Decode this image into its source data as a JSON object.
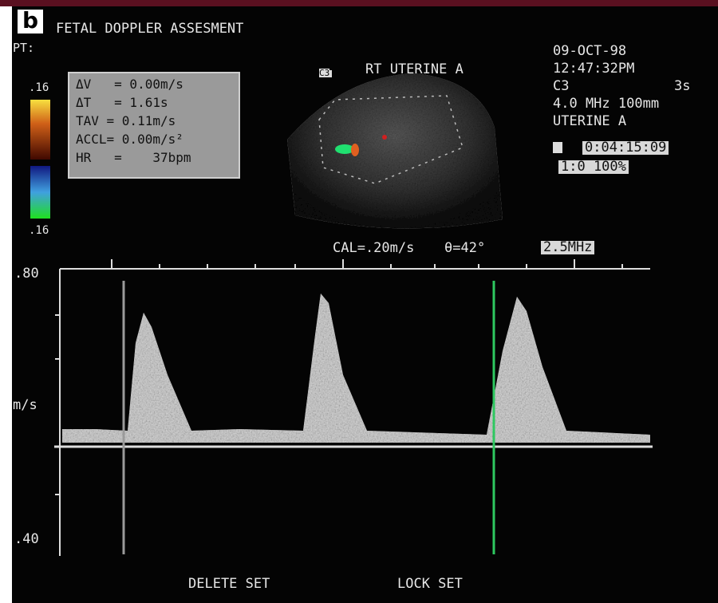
{
  "panel_label": "b",
  "title": "FETAL DOPPLER ASSESMENT",
  "patient_label": "PT:",
  "color_scale": {
    "top": ".16",
    "bottom": ".16"
  },
  "measurements": [
    "ΔV   = 0.00m/s",
    "ΔT   = 1.61s",
    "TAV = 0.11m/s",
    "ACCL= 0.00m/s²",
    "HR   =    37bpm"
  ],
  "image_label": "RT UTERINE A",
  "image_tag": "C3",
  "info": {
    "date": "09-OCT-98",
    "time": "12:47:32PM",
    "preset": "C3",
    "persist": "3s",
    "probe": "4.0 MHz 100mm",
    "exam": "UTERINE A",
    "timer": "0:04:15:09",
    "zoom": "1:0 100%"
  },
  "doppler": {
    "cal": "CAL=.20m/s",
    "angle": "θ=42°",
    "freq": "2.5MHz",
    "scale_top": ".80",
    "unit": "m/s",
    "scale_bottom": ".40"
  },
  "softkeys": [
    "DELETE SET",
    "LOCK SET"
  ]
}
